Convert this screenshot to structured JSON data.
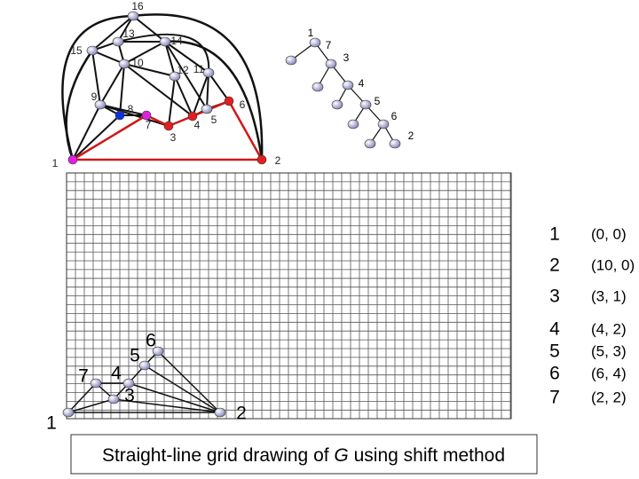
{
  "top_graph": {
    "nodes": [
      {
        "label": "16"
      },
      {
        "label": "13"
      },
      {
        "label": "14"
      },
      {
        "label": "15"
      },
      {
        "label": "10"
      },
      {
        "label": "12"
      },
      {
        "label": "11"
      },
      {
        "label": "9"
      },
      {
        "label": "8"
      },
      {
        "label": "7"
      },
      {
        "label": "3"
      },
      {
        "label": "4"
      },
      {
        "label": "5"
      },
      {
        "label": "6"
      },
      {
        "label": "1"
      },
      {
        "label": "2"
      }
    ]
  },
  "order_tree": {
    "nodes": [
      {
        "label": "1"
      },
      {
        "label": "7"
      },
      {
        "label": "3"
      },
      {
        "label": "4"
      },
      {
        "label": "5"
      },
      {
        "label": "6"
      },
      {
        "label": "2"
      }
    ]
  },
  "grid_drawing": {
    "nodes": [
      {
        "label": "1"
      },
      {
        "label": "2"
      },
      {
        "label": "3"
      },
      {
        "label": "4"
      },
      {
        "label": "5"
      },
      {
        "label": "6"
      },
      {
        "label": "7"
      }
    ]
  },
  "coordinates": {
    "rows": [
      [
        "1",
        "(0, 0)"
      ],
      [
        "2",
        "(10, 0)"
      ],
      [
        "3",
        "(3, 1)"
      ],
      [
        "4",
        "(4, 2)"
      ],
      [
        "5",
        "(5, 3)"
      ],
      [
        "6",
        "(6, 4)"
      ],
      [
        "7",
        "(2, 2)"
      ]
    ]
  },
  "caption": {
    "before": "Straight-line grid drawing of ",
    "variable": "G",
    "after": " using shift method"
  }
}
